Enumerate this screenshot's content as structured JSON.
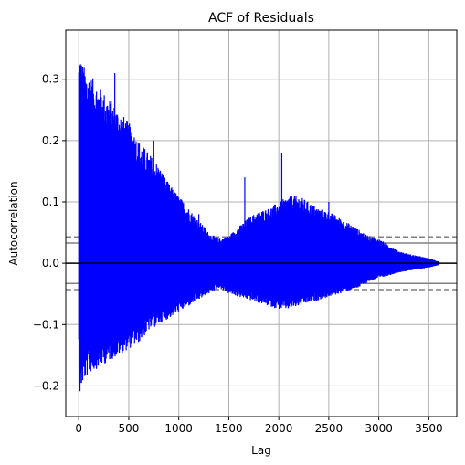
{
  "chart_data": {
    "type": "line",
    "title": "ACF of Residuals",
    "xlabel": "Lag",
    "ylabel": "Autocorrelation",
    "xlim": [
      -130,
      3780
    ],
    "ylim": [
      -0.25,
      0.38
    ],
    "xticks": [
      0,
      500,
      1000,
      1500,
      2000,
      2500,
      3000,
      3500
    ],
    "yticks": [
      -0.2,
      -0.1,
      0.0,
      0.1,
      0.2,
      0.3
    ],
    "ytick_labels": [
      "−0.2",
      "−0.1",
      "0.0",
      "0.1",
      "0.2",
      "0.3"
    ],
    "grid": true,
    "series_color": "#0000ff",
    "n_lags": 3600,
    "envelope": {
      "lag": [
        0,
        10,
        30,
        60,
        100,
        200,
        300,
        400,
        500,
        600,
        700,
        800,
        900,
        1000,
        1100,
        1200,
        1300,
        1400,
        1500,
        1600,
        1700,
        1800,
        1900,
        2000,
        2100,
        2200,
        2300,
        2400,
        2500,
        2600,
        2700,
        2800,
        2900,
        3000,
        3100,
        3200,
        3300,
        3400,
        3500,
        3600
      ],
      "upper": [
        0.34,
        0.35,
        0.33,
        0.32,
        0.31,
        0.29,
        0.27,
        0.25,
        0.23,
        0.2,
        0.18,
        0.16,
        0.13,
        0.11,
        0.09,
        0.07,
        0.05,
        0.04,
        0.045,
        0.06,
        0.075,
        0.085,
        0.09,
        0.1,
        0.11,
        0.11,
        0.1,
        0.09,
        0.085,
        0.075,
        0.065,
        0.055,
        0.045,
        0.04,
        0.03,
        0.02,
        0.015,
        0.012,
        0.008,
        0.003
      ],
      "lower": [
        -0.15,
        -0.22,
        -0.2,
        -0.19,
        -0.18,
        -0.17,
        -0.16,
        -0.15,
        -0.14,
        -0.13,
        -0.11,
        -0.1,
        -0.09,
        -0.08,
        -0.07,
        -0.06,
        -0.05,
        -0.04,
        -0.05,
        -0.055,
        -0.06,
        -0.065,
        -0.07,
        -0.075,
        -0.075,
        -0.07,
        -0.065,
        -0.06,
        -0.055,
        -0.05,
        -0.045,
        -0.04,
        -0.03,
        -0.025,
        -0.02,
        -0.015,
        -0.012,
        -0.01,
        -0.007,
        -0.003
      ]
    },
    "spikes": [
      {
        "lag": 360,
        "y": 0.31
      },
      {
        "lag": 550,
        "y": 0.2
      },
      {
        "lag": 750,
        "y": 0.2
      },
      {
        "lag": 1200,
        "y": 0.08
      },
      {
        "lag": 1660,
        "y": 0.14
      },
      {
        "lag": 2030,
        "y": 0.18
      },
      {
        "lag": 2500,
        "y": 0.1
      }
    ],
    "confidence_bands": [
      {
        "level": "95%",
        "y": 0.033,
        "style": "solid",
        "color": "#808080"
      },
      {
        "level": "95%",
        "y": -0.033,
        "style": "solid",
        "color": "#808080"
      },
      {
        "level": "99%",
        "y": 0.043,
        "style": "dashed",
        "color": "#808080"
      },
      {
        "level": "99%",
        "y": -0.043,
        "style": "dashed",
        "color": "#808080"
      }
    ],
    "zero_line_color": "#000000"
  }
}
